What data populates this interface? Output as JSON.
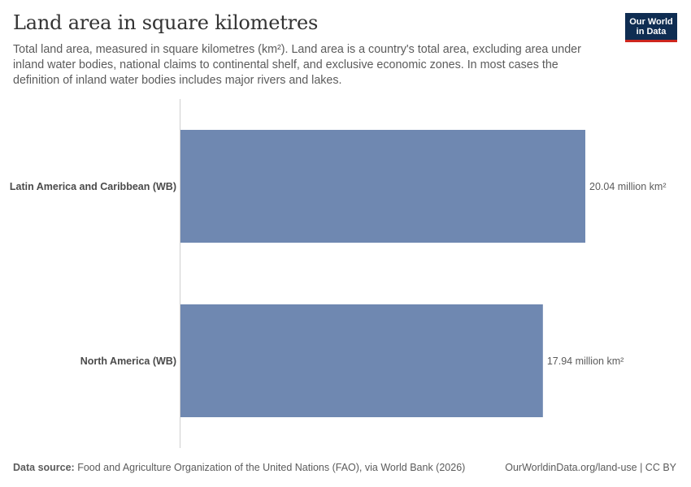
{
  "header": {
    "title": "Land area in square kilometres",
    "subtitle": "Total land area, measured in square kilometres (km²). Land area is a country's total area, excluding area under inland water bodies, national claims to continental shelf, and exclusive economic zones. In most cases the definition of inland water bodies includes major rivers and lakes.",
    "logo_line1": "Our World",
    "logo_line2": "in Data"
  },
  "footer": {
    "source_label": "Data source:",
    "source_text": "Food and Agriculture Organization of the United Nations (FAO), via World Bank (2026)",
    "url": "OurWorldinData.org/land-use | CC BY"
  },
  "chart_data": {
    "type": "bar",
    "orientation": "horizontal",
    "categories": [
      "Latin America and Caribbean (WB)",
      "North America (WB)"
    ],
    "values": [
      20.04,
      17.94
    ],
    "value_labels": [
      "20.04 million km²",
      "17.94 million km²"
    ],
    "unit": "million km²",
    "xlim": [
      0,
      20.04
    ],
    "bar_color": "#6f88b1",
    "grid": false
  }
}
